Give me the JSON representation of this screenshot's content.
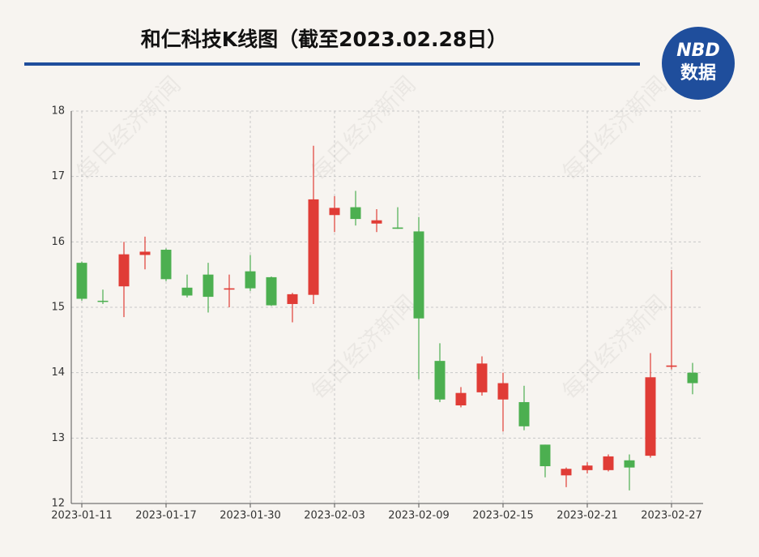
{
  "chart_data": {
    "type": "candlestick",
    "title": "和仁科技K线图（截至2023.02.28日）",
    "watermark": "每日经济新闻",
    "categories": [
      "2023-01-11",
      null,
      null,
      null,
      "2023-01-17",
      null,
      null,
      null,
      "2023-01-30",
      null,
      null,
      null,
      "2023-02-03",
      null,
      null,
      null,
      "2023-02-09",
      null,
      null,
      null,
      "2023-02-15",
      null,
      null,
      null,
      "2023-02-21",
      null,
      null,
      null,
      "2023-02-27",
      null
    ],
    "open": [
      15.68,
      15.1,
      15.32,
      15.8,
      15.88,
      15.3,
      15.5,
      15.27,
      15.55,
      15.46,
      15.05,
      15.19,
      16.41,
      16.53,
      16.28,
      16.22,
      16.16,
      14.18,
      13.5,
      13.7,
      13.59,
      13.55,
      12.9,
      12.43,
      12.51,
      12.51,
      12.66,
      12.73,
      14.09,
      14.0
    ],
    "high": [
      15.7,
      15.27,
      16.0,
      16.08,
      15.9,
      15.5,
      15.68,
      15.5,
      15.8,
      15.47,
      15.22,
      17.47,
      16.7,
      16.78,
      16.5,
      16.53,
      16.38,
      14.45,
      13.78,
      14.25,
      14.0,
      13.8,
      12.9,
      12.55,
      12.63,
      12.75,
      12.75,
      14.3,
      15.57,
      14.15
    ],
    "low": [
      15.1,
      15.05,
      14.85,
      15.58,
      15.4,
      15.15,
      14.92,
      15.0,
      15.25,
      15.02,
      14.77,
      15.05,
      16.15,
      16.25,
      16.15,
      16.2,
      13.9,
      13.55,
      13.47,
      13.65,
      13.1,
      13.12,
      12.4,
      12.25,
      12.46,
      12.49,
      12.2,
      12.7,
      14.05,
      13.67
    ],
    "close": [
      15.13,
      15.09,
      15.81,
      15.85,
      15.43,
      15.18,
      15.16,
      15.29,
      15.29,
      15.03,
      15.2,
      16.65,
      16.52,
      16.35,
      16.33,
      16.2,
      14.83,
      13.59,
      13.69,
      14.14,
      13.84,
      13.18,
      12.57,
      12.53,
      12.58,
      12.72,
      12.55,
      13.93,
      14.11,
      13.84
    ],
    "up_color": "#e03c36",
    "down_color": "#4caf50",
    "ylim": [
      12,
      18
    ],
    "yticks": [
      12,
      13,
      14,
      15,
      16,
      17,
      18
    ],
    "grid": true
  },
  "logo": {
    "line1": "NBD",
    "line2": "数据"
  }
}
